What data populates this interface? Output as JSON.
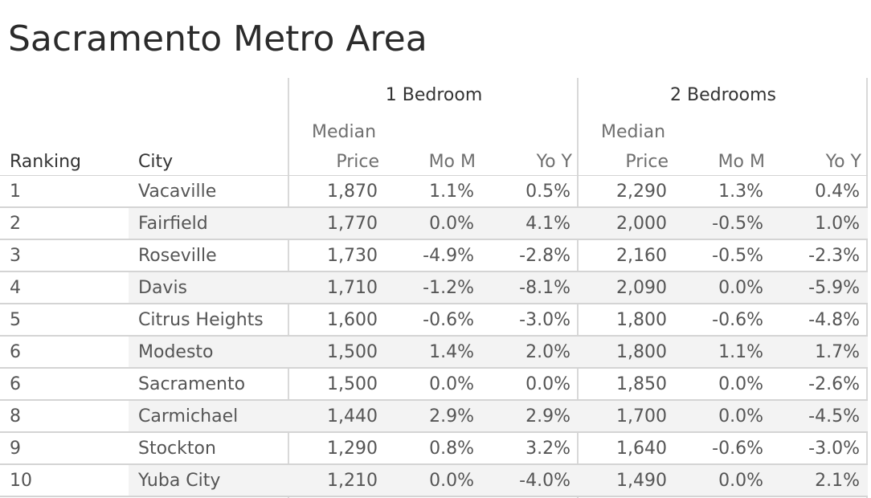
{
  "title": "Sacramento Metro Area",
  "chart_data": {
    "type": "table",
    "title": "Sacramento Metro Area",
    "groups": [
      "1 Bedroom",
      "2 Bedrooms"
    ],
    "column_headers": {
      "ranking": "Ranking",
      "city": "City",
      "median_top": "Median",
      "median_bottom": "Price",
      "mom": "Mo M",
      "yoy": "Yo Y"
    },
    "rows": [
      {
        "rank": "1",
        "city": "Vacaville",
        "b1_price": "1,870",
        "b1_mom": "1.1%",
        "b1_yoy": "0.5%",
        "b2_price": "2,290",
        "b2_mom": "1.3%",
        "b2_yoy": "0.4%"
      },
      {
        "rank": "2",
        "city": "Fairfield",
        "b1_price": "1,770",
        "b1_mom": "0.0%",
        "b1_yoy": "4.1%",
        "b2_price": "2,000",
        "b2_mom": "-0.5%",
        "b2_yoy": "1.0%"
      },
      {
        "rank": "3",
        "city": "Roseville",
        "b1_price": "1,730",
        "b1_mom": "-4.9%",
        "b1_yoy": "-2.8%",
        "b2_price": "2,160",
        "b2_mom": "-0.5%",
        "b2_yoy": "-2.3%"
      },
      {
        "rank": "4",
        "city": "Davis",
        "b1_price": "1,710",
        "b1_mom": "-1.2%",
        "b1_yoy": "-8.1%",
        "b2_price": "2,090",
        "b2_mom": "0.0%",
        "b2_yoy": "-5.9%"
      },
      {
        "rank": "5",
        "city": "Citrus Heights",
        "b1_price": "1,600",
        "b1_mom": "-0.6%",
        "b1_yoy": "-3.0%",
        "b2_price": "1,800",
        "b2_mom": "-0.6%",
        "b2_yoy": "-4.8%"
      },
      {
        "rank": "6",
        "city": "Modesto",
        "b1_price": "1,500",
        "b1_mom": "1.4%",
        "b1_yoy": "2.0%",
        "b2_price": "1,800",
        "b2_mom": "1.1%",
        "b2_yoy": "1.7%"
      },
      {
        "rank": "6",
        "city": "Sacramento",
        "b1_price": "1,500",
        "b1_mom": "0.0%",
        "b1_yoy": "0.0%",
        "b2_price": "1,850",
        "b2_mom": "0.0%",
        "b2_yoy": "-2.6%"
      },
      {
        "rank": "8",
        "city": "Carmichael",
        "b1_price": "1,440",
        "b1_mom": "2.9%",
        "b1_yoy": "2.9%",
        "b2_price": "1,700",
        "b2_mom": "0.0%",
        "b2_yoy": "-4.5%"
      },
      {
        "rank": "9",
        "city": "Stockton",
        "b1_price": "1,290",
        "b1_mom": "0.8%",
        "b1_yoy": "3.2%",
        "b2_price": "1,640",
        "b2_mom": "-0.6%",
        "b2_yoy": "-3.0%"
      },
      {
        "rank": "10",
        "city": "Yuba City",
        "b1_price": "1,210",
        "b1_mom": "0.0%",
        "b1_yoy": "-4.0%",
        "b2_price": "1,490",
        "b2_mom": "0.0%",
        "b2_yoy": "2.1%"
      }
    ]
  }
}
